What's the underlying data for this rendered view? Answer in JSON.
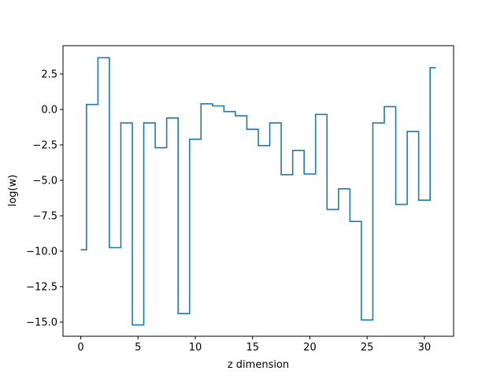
{
  "chart_data": {
    "type": "line",
    "drawstyle": "steps-mid",
    "title": "",
    "xlabel": "z dimension",
    "ylabel": "log(w)",
    "xlim": [
      -1.55,
      32.55
    ],
    "ylim": [
      -16.0,
      4.5
    ],
    "xticks": [
      0,
      5,
      10,
      15,
      20,
      25,
      30
    ],
    "xtick_labels": [
      "0",
      "5",
      "10",
      "15",
      "20",
      "25",
      "30"
    ],
    "yticks": [
      -15.0,
      -12.5,
      -10.0,
      -7.5,
      -5.0,
      -2.5,
      0.0,
      2.5
    ],
    "ytick_labels": [
      "−15.0",
      "−12.5",
      "−10.0",
      "−7.5",
      "−5.0",
      "−2.5",
      "0.0",
      "2.5"
    ],
    "grid": false,
    "line_color": "#1f77b4",
    "series": [
      {
        "x": [
          0,
          1,
          2,
          3,
          4,
          5,
          6,
          7,
          8,
          9,
          10,
          11,
          12,
          13,
          14,
          15,
          16,
          17,
          18,
          19,
          20,
          21,
          22,
          23,
          24,
          25,
          26,
          27,
          28,
          29,
          30,
          31
        ],
        "values": [
          -9.9,
          0.35,
          3.65,
          -9.75,
          -0.95,
          -15.2,
          -0.95,
          -2.7,
          -0.6,
          -14.4,
          -2.1,
          0.4,
          0.25,
          -0.15,
          -0.45,
          -1.4,
          -2.55,
          -0.95,
          -4.6,
          -2.9,
          -4.55,
          -0.35,
          -7.05,
          -5.6,
          -7.9,
          -14.85,
          -0.95,
          0.2,
          -6.7,
          -1.55,
          -6.4,
          2.95
        ]
      }
    ]
  }
}
